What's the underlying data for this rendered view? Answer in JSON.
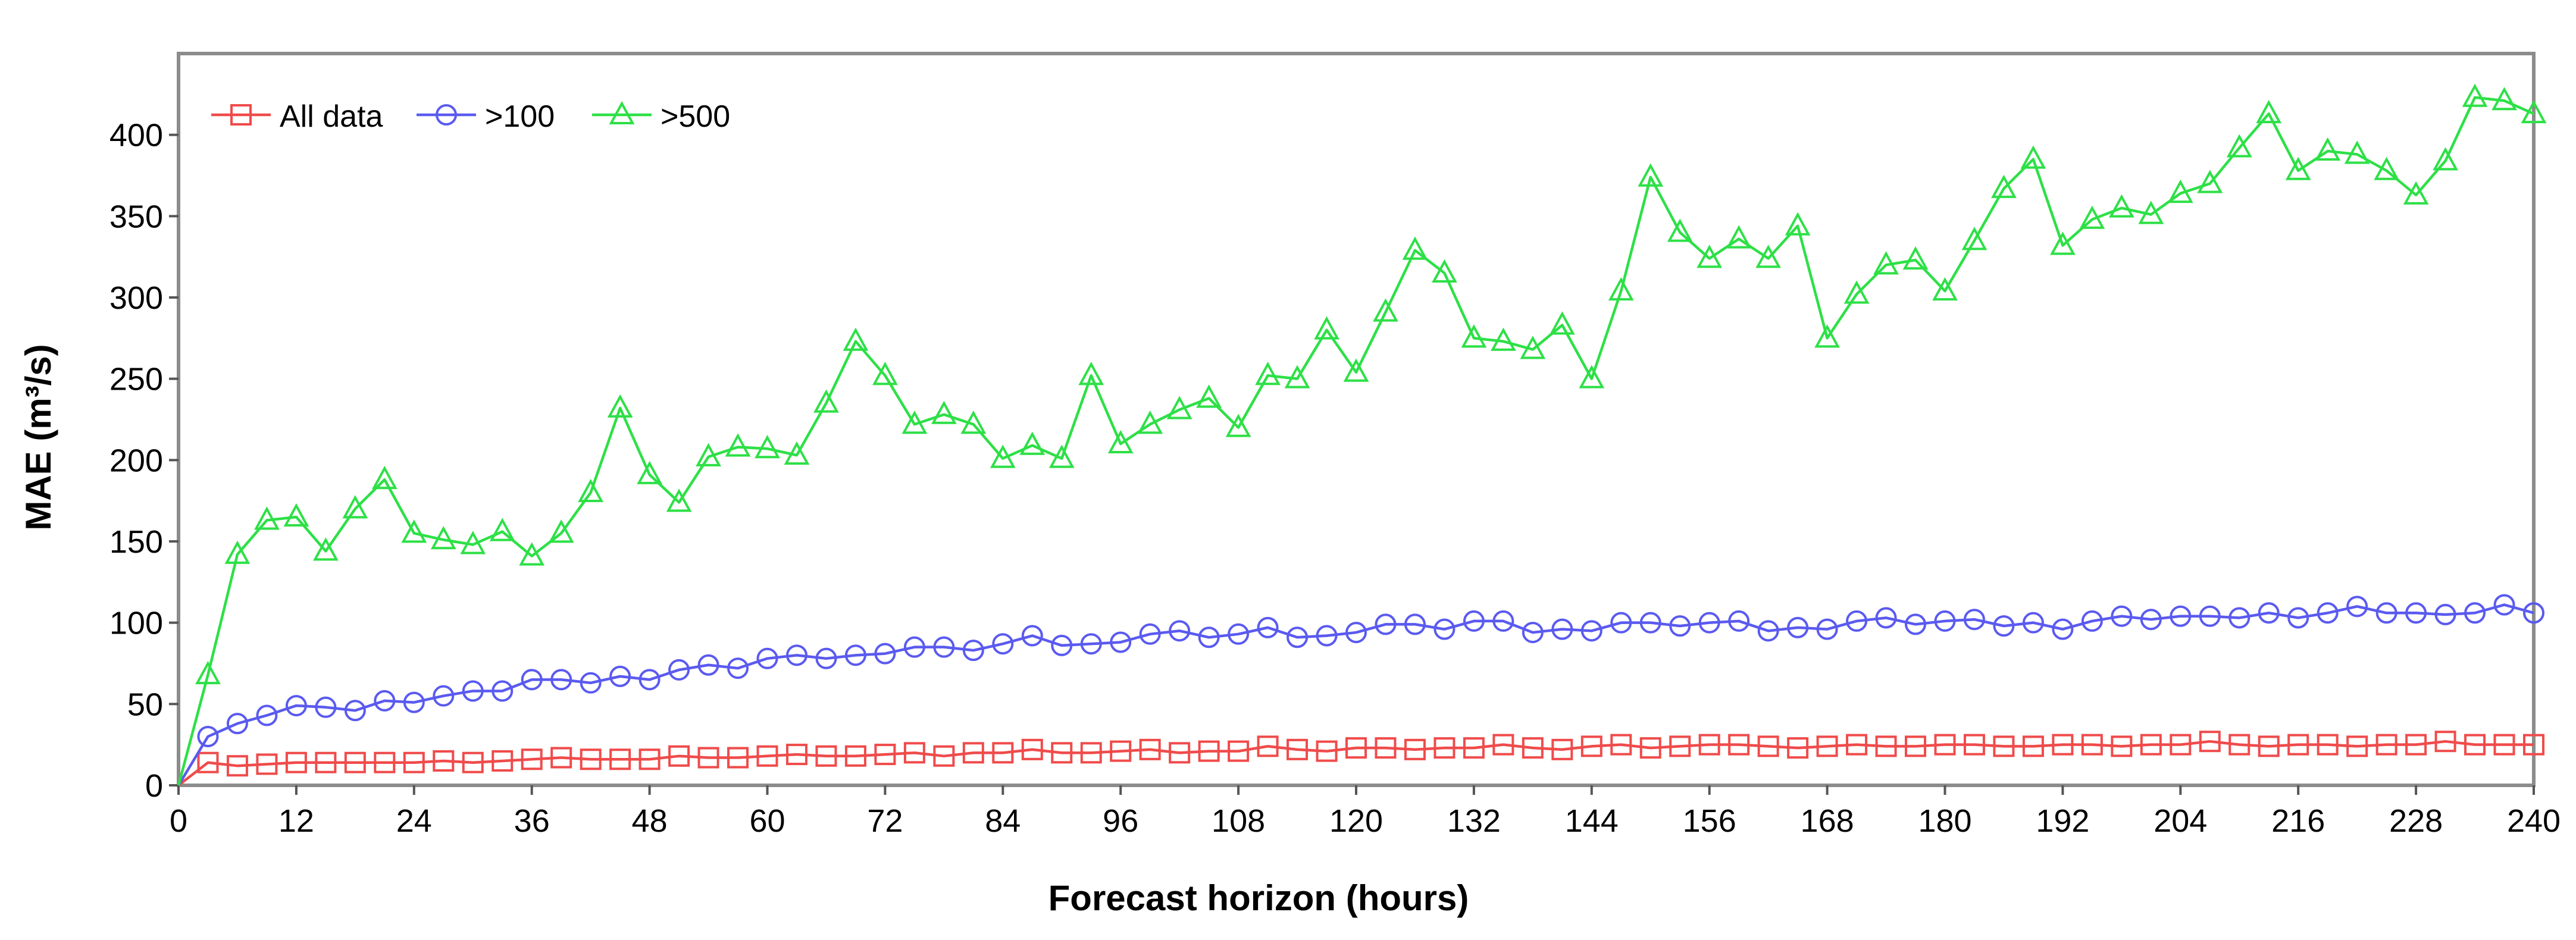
{
  "chart_data": {
    "type": "line",
    "xlabel": "Forecast horizon  (hours)",
    "ylabel": "MAE (m³/s)",
    "xlim": [
      0,
      240
    ],
    "ylim": [
      0,
      450
    ],
    "xticks": [
      0,
      12,
      24,
      36,
      48,
      60,
      72,
      84,
      96,
      108,
      120,
      132,
      144,
      156,
      168,
      180,
      192,
      204,
      216,
      228,
      240
    ],
    "yticks": [
      0,
      50,
      100,
      150,
      200,
      250,
      300,
      350,
      400
    ],
    "grid": false,
    "legend_position": "top-left",
    "x": [
      0,
      3,
      6,
      9,
      12,
      15,
      18,
      21,
      24,
      27,
      30,
      33,
      36,
      39,
      42,
      45,
      48,
      51,
      54,
      57,
      60,
      63,
      66,
      69,
      72,
      75,
      78,
      81,
      84,
      87,
      90,
      93,
      96,
      99,
      102,
      105,
      108,
      111,
      114,
      117,
      120,
      123,
      126,
      129,
      132,
      135,
      138,
      141,
      144,
      147,
      150,
      153,
      156,
      159,
      162,
      165,
      168,
      171,
      174,
      177,
      180,
      183,
      186,
      189,
      192,
      195,
      198,
      201,
      204,
      207,
      210,
      213,
      216,
      219,
      222,
      225,
      228,
      231,
      234,
      237,
      240
    ],
    "series": [
      {
        "name": "All data",
        "color": "#f04b4b",
        "marker": "square",
        "values": [
          0,
          14,
          12,
          13,
          14,
          14,
          14,
          14,
          14,
          15,
          14,
          15,
          16,
          17,
          16,
          16,
          16,
          18,
          17,
          17,
          18,
          19,
          18,
          18,
          19,
          20,
          18,
          20,
          20,
          22,
          20,
          20,
          21,
          22,
          20,
          21,
          21,
          24,
          22,
          21,
          23,
          23,
          22,
          23,
          23,
          25,
          23,
          22,
          24,
          25,
          23,
          24,
          25,
          25,
          24,
          23,
          24,
          25,
          24,
          24,
          25,
          25,
          24,
          24,
          25,
          25,
          24,
          25,
          25,
          27,
          25,
          24,
          25,
          25,
          24,
          25,
          25,
          27,
          25,
          25,
          25
        ]
      },
      {
        "name": ">100",
        "color": "#5a5af0",
        "marker": "circle",
        "values": [
          0,
          30,
          38,
          43,
          49,
          48,
          46,
          52,
          51,
          55,
          58,
          58,
          65,
          65,
          63,
          67,
          65,
          71,
          74,
          72,
          78,
          80,
          78,
          80,
          81,
          85,
          85,
          83,
          87,
          92,
          86,
          87,
          88,
          93,
          95,
          91,
          93,
          97,
          91,
          92,
          94,
          99,
          99,
          96,
          101,
          101,
          94,
          96,
          95,
          100,
          100,
          98,
          100,
          101,
          95,
          97,
          96,
          101,
          103,
          99,
          101,
          102,
          98,
          100,
          96,
          101,
          104,
          102,
          104,
          104,
          103,
          106,
          103,
          106,
          110,
          106,
          106,
          105,
          106,
          111,
          106
        ]
      },
      {
        "name": ">500",
        "color": "#2de046",
        "marker": "triangle",
        "values": [
          0,
          68,
          142,
          163,
          165,
          144,
          170,
          188,
          155,
          151,
          148,
          156,
          141,
          155,
          180,
          232,
          191,
          174,
          202,
          208,
          207,
          203,
          235,
          273,
          252,
          222,
          228,
          222,
          201,
          209,
          201,
          252,
          210,
          222,
          231,
          238,
          220,
          252,
          250,
          280,
          254,
          291,
          329,
          315,
          275,
          273,
          268,
          283,
          250,
          304,
          374,
          340,
          324,
          336,
          324,
          344,
          275,
          302,
          320,
          323,
          304,
          335,
          367,
          385,
          332,
          348,
          355,
          351,
          364,
          370,
          392,
          413,
          378,
          390,
          388,
          378,
          363,
          384,
          423,
          421,
          413
        ]
      }
    ]
  }
}
